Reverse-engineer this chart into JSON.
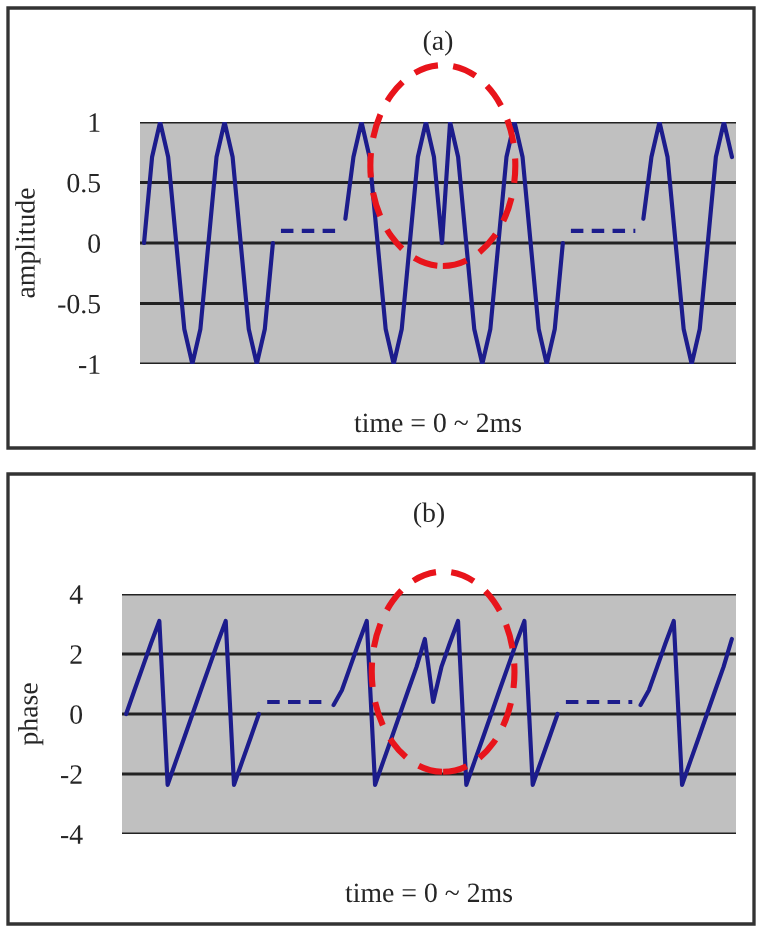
{
  "chart_data": [
    {
      "type": "line",
      "title": "(a)",
      "xlabel": "time = 0 ~ 2ms",
      "ylabel": "amplitude",
      "ylim": [
        -1,
        1
      ],
      "yticks": [
        -1,
        -0.5,
        0,
        0.5,
        1
      ],
      "grid": "y",
      "legend": false,
      "marker": "none",
      "categories": [
        null,
        null,
        null,
        null,
        null,
        null,
        null,
        null,
        null,
        null,
        null,
        null,
        null,
        null,
        null,
        null,
        null,
        null,
        null,
        null,
        null,
        null,
        null,
        null,
        null,
        null,
        null,
        null,
        null,
        null,
        null,
        null,
        null,
        null,
        null,
        null,
        null,
        null,
        null,
        null,
        null,
        null,
        null,
        null,
        null,
        null,
        null,
        null,
        null,
        null,
        null,
        null,
        null,
        null,
        null,
        null,
        null,
        null,
        null,
        null,
        null,
        null,
        null,
        null,
        null,
        null,
        null,
        null,
        null,
        null,
        null,
        null,
        null,
        null
      ],
      "series": [
        {
          "color": "#1c1c8c",
          "line_style": "solid",
          "values": [
            0,
            0.71,
            1,
            0.71,
            0,
            -0.71,
            -1,
            -0.71,
            0,
            0.71,
            1,
            0.71,
            0,
            -0.71,
            -1,
            -0.71,
            0,
            null,
            null,
            null,
            null,
            null,
            null,
            null,
            null,
            0.2,
            0.71,
            1,
            0.71,
            0,
            -0.71,
            -1,
            -0.71,
            0,
            0.71,
            1,
            0.71,
            0,
            1,
            0.71,
            0,
            -0.71,
            -1,
            -0.71,
            0,
            0.71,
            1,
            0.71,
            0,
            -0.71,
            -1,
            -0.71,
            0,
            null,
            null,
            null,
            null,
            null,
            null,
            null,
            null,
            null,
            0.2,
            0.71,
            1,
            0.71,
            0,
            -0.71,
            -1,
            -0.71,
            0,
            0.71,
            1,
            0.71
          ]
        },
        {
          "color": "#1c1c8c",
          "line_style": "dashed",
          "values": [
            null,
            null,
            null,
            null,
            null,
            null,
            null,
            null,
            null,
            null,
            null,
            null,
            null,
            null,
            null,
            null,
            null,
            0.1,
            0.1,
            0.1,
            0.1,
            0.1,
            0.1,
            0.1,
            0.1,
            null,
            null,
            null,
            null,
            null,
            null,
            null,
            null,
            null,
            null,
            null,
            null,
            null,
            null,
            null,
            null,
            null,
            null,
            null,
            null,
            null,
            null,
            null,
            null,
            null,
            null,
            null,
            null,
            0.1,
            0.1,
            0.1,
            0.1,
            0.1,
            0.1,
            0.1,
            0.1,
            0.1,
            null,
            null,
            null,
            null,
            null,
            null,
            null,
            null,
            null,
            null,
            null,
            null
          ]
        }
      ]
    },
    {
      "type": "line",
      "title": "(b)",
      "xlabel": "time = 0 ~ 2ms",
      "ylabel": "phase",
      "ylim": [
        -4,
        4
      ],
      "yticks": [
        -4,
        -2,
        0,
        2,
        4
      ],
      "grid": "y",
      "legend": false,
      "marker": "none",
      "categories": [
        null,
        null,
        null,
        null,
        null,
        null,
        null,
        null,
        null,
        null,
        null,
        null,
        null,
        null,
        null,
        null,
        null,
        null,
        null,
        null,
        null,
        null,
        null,
        null,
        null,
        null,
        null,
        null,
        null,
        null,
        null,
        null,
        null,
        null,
        null,
        null,
        null,
        null,
        null,
        null,
        null,
        null,
        null,
        null,
        null,
        null,
        null,
        null,
        null,
        null,
        null,
        null,
        null,
        null,
        null,
        null,
        null,
        null,
        null,
        null,
        null,
        null,
        null,
        null,
        null,
        null,
        null,
        null,
        null,
        null,
        null,
        null,
        null,
        null
      ],
      "series": [
        {
          "color": "#1c1c8c",
          "line_style": "solid",
          "values": [
            0,
            0.79,
            1.57,
            2.36,
            3.1,
            -2.36,
            -1.57,
            -0.79,
            0,
            0.79,
            1.57,
            2.36,
            3.1,
            -2.36,
            -1.57,
            -0.79,
            0,
            null,
            null,
            null,
            null,
            null,
            null,
            null,
            null,
            0.3,
            0.79,
            1.57,
            2.36,
            3.1,
            -2.36,
            -1.57,
            -0.79,
            0,
            0.79,
            1.57,
            2.5,
            0.4,
            1.57,
            2.36,
            3.1,
            -2.36,
            -1.57,
            -0.79,
            0,
            0.79,
            1.57,
            2.36,
            3.1,
            -2.36,
            -1.57,
            -0.79,
            0,
            null,
            null,
            null,
            null,
            null,
            null,
            null,
            null,
            null,
            0.3,
            0.79,
            1.57,
            2.36,
            3.1,
            -2.36,
            -1.57,
            -0.79,
            0,
            0.79,
            1.57,
            2.5
          ]
        },
        {
          "color": "#1c1c8c",
          "line_style": "dashed",
          "values": [
            null,
            null,
            null,
            null,
            null,
            null,
            null,
            null,
            null,
            null,
            null,
            null,
            null,
            null,
            null,
            null,
            null,
            0.4,
            0.4,
            0.4,
            0.4,
            0.4,
            0.4,
            0.4,
            0.4,
            null,
            null,
            null,
            null,
            null,
            null,
            null,
            null,
            null,
            null,
            null,
            null,
            null,
            null,
            null,
            null,
            null,
            null,
            null,
            null,
            null,
            null,
            null,
            null,
            null,
            null,
            null,
            null,
            0.4,
            0.4,
            0.4,
            0.4,
            0.4,
            0.4,
            0.4,
            0.4,
            0.4,
            null,
            null,
            null,
            null,
            null,
            null,
            null,
            null,
            null,
            null,
            null,
            null
          ]
        }
      ]
    }
  ]
}
